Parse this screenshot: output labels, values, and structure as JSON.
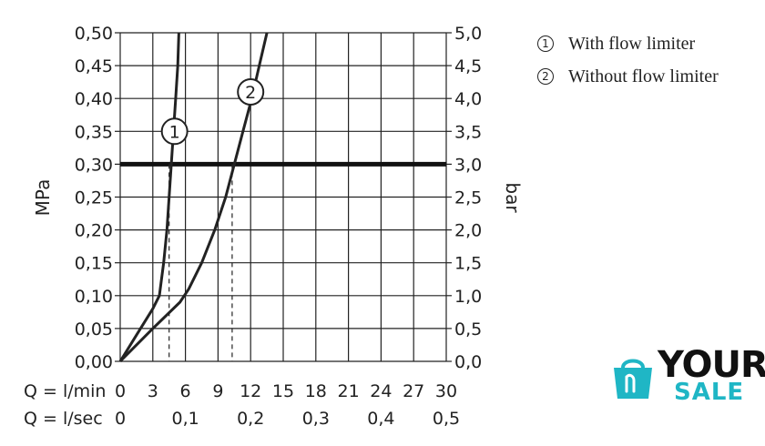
{
  "chart_data": {
    "type": "line",
    "ylabel_left": "MPa",
    "ylabel_right": "bar",
    "yticks_left": [
      "0,00",
      "0,05",
      "0,10",
      "0,15",
      "0,20",
      "0,25",
      "0,30",
      "0,35",
      "0,40",
      "0,45",
      "0,50"
    ],
    "yticks_right": [
      "0,0",
      "0,5",
      "1,0",
      "1,5",
      "2,0",
      "2,5",
      "3,0",
      "3,5",
      "4,0",
      "4,5",
      "5,0"
    ],
    "ylim_mpa": [
      0,
      0.5
    ],
    "xlim_lmin": [
      0,
      30
    ],
    "xaxis_lmin_label": "Q = l/min",
    "xticks_lmin": [
      "0",
      "3",
      "6",
      "9",
      "12",
      "15",
      "18",
      "21",
      "24",
      "27",
      "30"
    ],
    "xaxis_lsec_label": "Q = l/sec",
    "xticks_lsec": [
      "0",
      "0,1",
      "0,2",
      "0,3",
      "0,4",
      "0,5"
    ],
    "grid": true,
    "reference_line": {
      "y_mpa": 0.3
    },
    "series": [
      {
        "name": "With flow limiter",
        "marker": "1",
        "points": [
          [
            0,
            0
          ],
          [
            1.5,
            0.04
          ],
          [
            3,
            0.08
          ],
          [
            3.6,
            0.1
          ],
          [
            4.0,
            0.15
          ],
          [
            4.3,
            0.2
          ],
          [
            4.5,
            0.25
          ],
          [
            4.7,
            0.3
          ],
          [
            4.9,
            0.35
          ],
          [
            5.1,
            0.4
          ],
          [
            5.3,
            0.45
          ],
          [
            5.4,
            0.5
          ]
        ],
        "marker_at": [
          5.0,
          0.35
        ]
      },
      {
        "name": "Without flow limiter",
        "marker": "2",
        "points": [
          [
            0,
            0
          ],
          [
            3,
            0.05
          ],
          [
            5.5,
            0.09
          ],
          [
            6.3,
            0.11
          ],
          [
            7.5,
            0.15
          ],
          [
            8.7,
            0.2
          ],
          [
            9.7,
            0.25
          ],
          [
            10.5,
            0.3
          ],
          [
            11.3,
            0.35
          ],
          [
            12.1,
            0.4
          ],
          [
            12.8,
            0.45
          ],
          [
            13.5,
            0.5
          ]
        ],
        "marker_at": [
          12.0,
          0.41
        ]
      }
    ],
    "drop_lines_lmin": [
      4.5,
      10.3
    ]
  },
  "legend": [
    {
      "num": "1",
      "label": "With flow limiter"
    },
    {
      "num": "2",
      "label": "Without flow limiter"
    }
  ],
  "logo": {
    "line1": "YOUR",
    "line2": "SALE",
    "color_accent": "#1fb6c5"
  }
}
